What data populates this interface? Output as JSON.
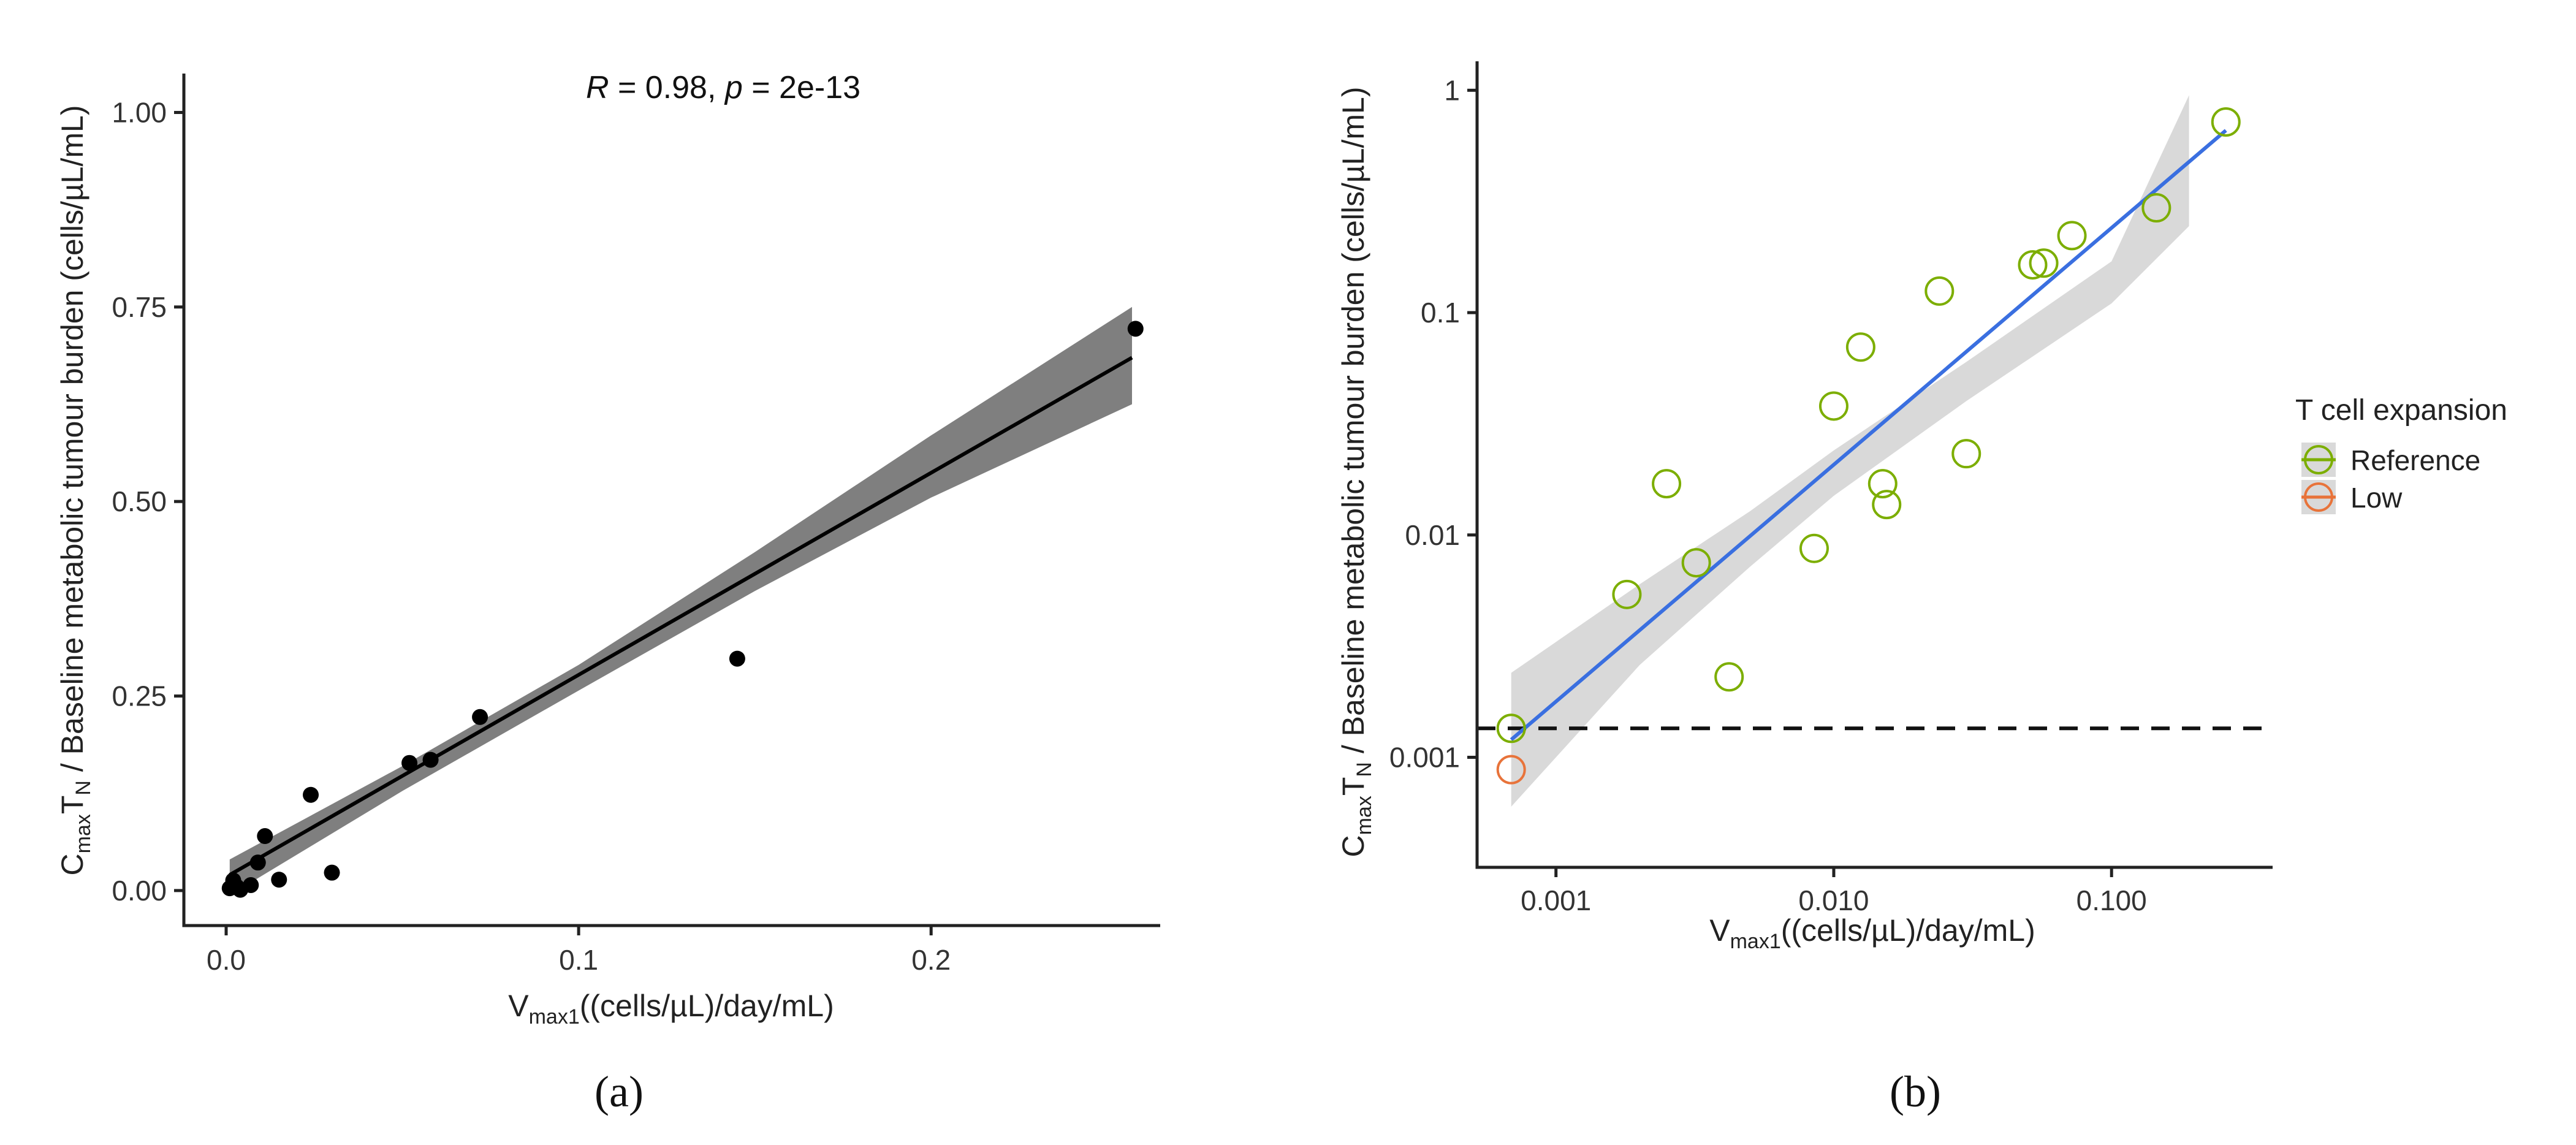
{
  "chart_data": [
    {
      "panel_label": "(a)",
      "type": "scatter",
      "annotation": "R = 0.98, p = 2e-13",
      "annotation_parts": {
        "r_sym": "R",
        "r_val": " = 0.98, ",
        "p_sym": "p",
        "p_val": " = 2e-13"
      },
      "xlabel": {
        "pre": "V",
        "sub": "max1",
        "post": "((cells/µL)/day/mL)"
      },
      "ylabel": {
        "c": "C",
        "c_sub": "max",
        "t": "T",
        "t_sub": "N",
        "rest": " / Baseline metabolic tumour burden (cells/µL/mL)"
      },
      "xlim": [
        -0.012,
        0.265
      ],
      "ylim": [
        -0.045,
        1.05
      ],
      "xticks": [
        0.0,
        0.1,
        0.2
      ],
      "xtick_labels": [
        "0.0",
        "0.1",
        "0.2"
      ],
      "yticks": [
        0.0,
        0.25,
        0.5,
        0.75,
        1.0
      ],
      "ytick_labels": [
        "0.00",
        "0.25",
        "0.50",
        "0.75",
        "1.00"
      ],
      "points": [
        [
          0.001,
          0.003
        ],
        [
          0.002,
          0.013
        ],
        [
          0.003,
          0.005
        ],
        [
          0.004,
          0.001
        ],
        [
          0.007,
          0.007
        ],
        [
          0.009,
          0.036
        ],
        [
          0.011,
          0.07
        ],
        [
          0.015,
          0.014
        ],
        [
          0.024,
          0.123
        ],
        [
          0.03,
          0.023
        ],
        [
          0.052,
          0.164
        ],
        [
          0.058,
          0.168
        ],
        [
          0.072,
          0.223
        ],
        [
          0.145,
          0.298
        ],
        [
          0.258,
          0.722
        ]
      ],
      "fit": {
        "x0": 0.001,
        "x1": 0.257,
        "intercept": 0.0175,
        "slope": 2.597
      },
      "ci_upper": [
        [
          0.001,
          0.04
        ],
        [
          0.05,
          0.16
        ],
        [
          0.1,
          0.29
        ],
        [
          0.15,
          0.435
        ],
        [
          0.2,
          0.585
        ],
        [
          0.257,
          0.75
        ]
      ],
      "ci_lower": [
        [
          0.001,
          -0.006
        ],
        [
          0.05,
          0.128
        ],
        [
          0.1,
          0.257
        ],
        [
          0.15,
          0.385
        ],
        [
          0.2,
          0.505
        ],
        [
          0.257,
          0.625
        ]
      ],
      "colors": {
        "points": "#000000",
        "fit": "#000000",
        "band": "#7f7f7f"
      }
    },
    {
      "panel_label": "(b)",
      "type": "scatter",
      "scale": "log10",
      "xlabel": {
        "pre": "V",
        "sub": "max1",
        "post": "((cells/µL)/day/mL)"
      },
      "ylabel": {
        "c": "C",
        "c_sub": "max",
        "t": "T",
        "t_sub": "N",
        "rest": " / Baseline metabolic tumour burden (cells/µL/mL)"
      },
      "xlim": [
        0.00052,
        0.38
      ],
      "ylim": [
        0.00032,
        1.35
      ],
      "xticks": [
        0.001,
        0.01,
        0.1
      ],
      "xtick_labels": [
        "0.001",
        "0.010",
        "0.100"
      ],
      "yticks": [
        0.001,
        0.01,
        0.1,
        1
      ],
      "ytick_labels": [
        "0.001",
        "0.01",
        "0.1",
        "1"
      ],
      "hline": {
        "y": 0.00135,
        "style": "dashed"
      },
      "series": [
        {
          "name": "Reference",
          "color": "#7cae00",
          "points": [
            [
              0.00069,
              0.00135
            ],
            [
              0.0018,
              0.0054
            ],
            [
              0.0025,
              0.017
            ],
            [
              0.0032,
              0.0075
            ],
            [
              0.0042,
              0.0023
            ],
            [
              0.0085,
              0.0087
            ],
            [
              0.01,
              0.038
            ],
            [
              0.0125,
              0.07
            ],
            [
              0.015,
              0.017
            ],
            [
              0.0155,
              0.0137
            ],
            [
              0.024,
              0.125
            ],
            [
              0.03,
              0.0232
            ],
            [
              0.052,
              0.164
            ],
            [
              0.057,
              0.167
            ],
            [
              0.072,
              0.222
            ],
            [
              0.145,
              0.296
            ],
            [
              0.258,
              0.72
            ]
          ]
        },
        {
          "name": "Low",
          "color": "#e8733a",
          "points": [
            [
              0.00069,
              0.00088
            ]
          ]
        }
      ],
      "fit": {
        "x0": 0.00069,
        "x1": 0.258,
        "y0": 0.0012,
        "y1": 0.66,
        "color": "#3a6fe0"
      },
      "ci_upper": [
        [
          0.00069,
          0.0024
        ],
        [
          0.002,
          0.006
        ],
        [
          0.005,
          0.0128
        ],
        [
          0.01,
          0.024
        ],
        [
          0.03,
          0.06
        ],
        [
          0.1,
          0.17
        ],
        [
          0.19,
          0.95
        ]
      ],
      "ci_lower": [
        [
          0.00069,
          0.0006
        ],
        [
          0.002,
          0.0026
        ],
        [
          0.005,
          0.0072
        ],
        [
          0.01,
          0.015
        ],
        [
          0.03,
          0.04
        ],
        [
          0.1,
          0.11
        ],
        [
          0.19,
          0.245
        ]
      ],
      "band_color": "#d9d9d9",
      "legend": {
        "title": "T cell expansion",
        "entries": [
          {
            "label": "Reference",
            "color": "#7cae00"
          },
          {
            "label": "Low",
            "color": "#e8733a"
          }
        ]
      }
    }
  ]
}
